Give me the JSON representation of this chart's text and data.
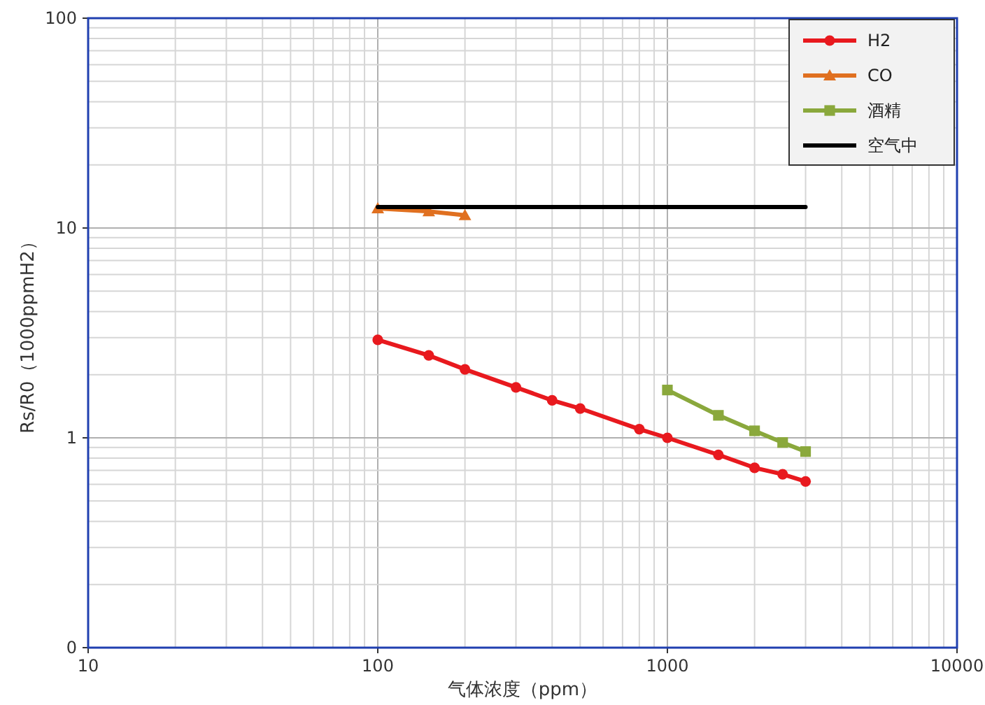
{
  "chart_data": {
    "type": "line",
    "xlabel": "气体浓度（ppm）",
    "ylabel": "Rs/R0（1000ppmH2）",
    "log": "xy",
    "xlim": [
      10,
      10000
    ],
    "ylim": [
      0.1,
      100
    ],
    "xticks": [
      10,
      100,
      1000,
      10000
    ],
    "yticks": [
      {
        "value": 0.1,
        "label": "0"
      },
      1,
      10,
      100
    ],
    "grid": true,
    "legend": "top right",
    "series": [
      {
        "name": "H2",
        "color": "#e8191e",
        "marker": "circle",
        "x": [
          100,
          150,
          200,
          300,
          400,
          500,
          800,
          1000,
          1500,
          2000,
          2500,
          3000
        ],
        "values": [
          2.93,
          2.47,
          2.12,
          1.74,
          1.51,
          1.38,
          1.1,
          1.0,
          0.83,
          0.72,
          0.67,
          0.62
        ]
      },
      {
        "name": "CO",
        "color": "#e07020",
        "marker": "triangle",
        "x": [
          100,
          150,
          200
        ],
        "values": [
          12.4,
          12.0,
          11.5
        ]
      },
      {
        "name": "酒精",
        "color": "#8aa83c",
        "marker": "square",
        "x": [
          1000,
          1500,
          2000,
          2500,
          3000
        ],
        "values": [
          1.69,
          1.28,
          1.08,
          0.95,
          0.86
        ]
      },
      {
        "name": "空气中",
        "color": "#000000",
        "marker": "none",
        "x": [
          100,
          3000
        ],
        "values": [
          12.6,
          12.6
        ]
      }
    ]
  }
}
